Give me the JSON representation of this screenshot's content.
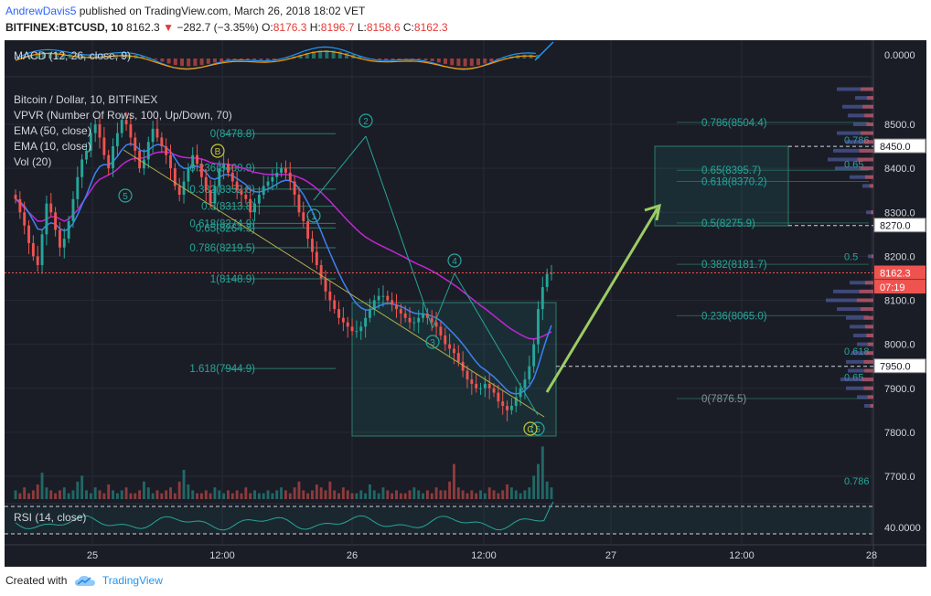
{
  "header": {
    "author": "AndrewDavis5",
    "published": "published on TradingView.com, March 26, 2018 18:02 VET",
    "symbol": "BITFINEX:BTCUSD, 10",
    "last": "8162.3",
    "change_arrow": "▼",
    "change": "−282.7 (−3.35%)",
    "o_label": "O:",
    "o": "8176.3",
    "h_label": "H:",
    "h": "8196.7",
    "l_label": "L:",
    "l": "8158.6",
    "c_label": "C:",
    "c": "8162.3"
  },
  "legend": {
    "macd": "MACD (12, 26, close, 9)",
    "title": "Bitcoin / Dollar, 10, BITFINEX",
    "vpvr": "VPVR (Number Of Rows, 100, Up/Down, 70)",
    "ema50": "EMA (50, close)",
    "ema10": "EMA (10, close)",
    "vol": "Vol (20)",
    "rsi": "RSI (14, close)"
  },
  "colors": {
    "background": "#1a1d26",
    "up": "#26a69a",
    "down": "#ef5350",
    "ema50": "#c026d3",
    "ema10": "#3b82f6",
    "fib": "#2e7d6a",
    "arrow": "#9ccc65",
    "current_price": "#ef5350"
  },
  "footer": {
    "created_with": "Created with",
    "brand": "TradingView",
    "logo_icon": "tradingview-cloud-icon"
  },
  "chart_data": {
    "type": "candlestick",
    "title": "Bitcoin / Dollar, 10, BITFINEX",
    "price_axis": {
      "ticks": [
        "8500.0",
        "8400.0",
        "8300.0",
        "8200.0",
        "8100.0",
        "8000.0",
        "7900.0",
        "7800.0",
        "7700.0"
      ],
      "ylim": [
        7650,
        8600
      ]
    },
    "time_axis": {
      "ticks": [
        "25",
        "12:00",
        "26",
        "12:00",
        "27",
        "12:00",
        "28"
      ]
    },
    "macd_axis": "0.0000",
    "rsi_axis": "40.0000",
    "price_tags": [
      {
        "label": "8450.0",
        "value": 8450,
        "style": "white"
      },
      {
        "label": "8270.0",
        "value": 8270,
        "style": "white"
      },
      {
        "label": "8162.3",
        "value": 8162.3,
        "style": "red"
      },
      {
        "label": "07:19",
        "value": 8130,
        "style": "red"
      },
      {
        "label": "7950.0",
        "value": 7950,
        "style": "white"
      }
    ],
    "close_series": [
      8330,
      8300,
      8270,
      8230,
      8200,
      8180,
      8250,
      8320,
      8300,
      8260,
      8220,
      8240,
      8280,
      8330,
      8380,
      8420,
      8440,
      8480,
      8500,
      8470,
      8430,
      8400,
      8450,
      8480,
      8510,
      8500,
      8470,
      8440,
      8400,
      8420,
      8460,
      8490,
      8470,
      8450,
      8430,
      8400,
      8360,
      8340,
      8370,
      8400,
      8430,
      8410,
      8380,
      8350,
      8320,
      8360,
      8400,
      8410,
      8390,
      8370,
      8350,
      8340,
      8330,
      8300,
      8320,
      8340,
      8360,
      8370,
      8380,
      8390,
      8400,
      8390,
      8370,
      8340,
      8300,
      8280,
      8240,
      8210,
      8180,
      8150,
      8120,
      8100,
      8080,
      8060,
      8050,
      8040,
      8030,
      8030,
      8040,
      8060,
      8080,
      8100,
      8110,
      8110,
      8100,
      8090,
      8080,
      8070,
      8060,
      8050,
      8050,
      8060,
      8070,
      8060,
      8050,
      8040,
      8020,
      8000,
      7990,
      7980,
      7960,
      7940,
      7920,
      7910,
      7900,
      7900,
      7910,
      7900,
      7890,
      7870,
      7860,
      7850,
      7860,
      7880,
      7900,
      7920,
      7950,
      8000,
      8080,
      8130,
      8160,
      8162.3
    ],
    "ema50_series": [
      8330,
      8320,
      8310,
      8300,
      8290,
      8280,
      8280,
      8285,
      8290,
      8290,
      8285,
      8280,
      8285,
      8295,
      8305,
      8320,
      8335,
      8350,
      8365,
      8375,
      8380,
      8385,
      8390,
      8398,
      8408,
      8415,
      8420,
      8423,
      8423,
      8424,
      8428,
      8433,
      8436,
      8437,
      8437,
      8435,
      8431,
      8427,
      8425,
      8424,
      8424,
      8423,
      8421,
      8418,
      8413,
      8411,
      8410,
      8410,
      8409,
      8407,
      8404,
      8401,
      8398,
      8394,
      8391,
      8389,
      8387,
      8386,
      8386,
      8386,
      8386,
      8386,
      8385,
      8383,
      8379,
      8375,
      8369,
      8362,
      8354,
      8345,
      8335,
      8325,
      8314,
      8303,
      8292,
      8281,
      8271,
      8261,
      8252,
      8244,
      8238,
      8232,
      8227,
      8222,
      8217,
      8212,
      8207,
      8202,
      8197,
      8191,
      8186,
      8181,
      8177,
      8172,
      8167,
      8161,
      8155,
      8148,
      8142,
      8135,
      8128,
      8120,
      8112,
      8104,
      8096,
      8088,
      8081,
      8073,
      8065,
      8057,
      8049,
      8041,
      8034,
      8028,
      8022,
      8017,
      8013,
      8012,
      8014,
      8018,
      8023,
      8028
    ],
    "ema10_series": [
      8330,
      8324,
      8314,
      8299,
      8281,
      8262,
      8260,
      8271,
      8276,
      8273,
      8263,
      8258,
      8262,
      8275,
      8294,
      8317,
      8339,
      8365,
      8389,
      8404,
      8409,
      8407,
      8415,
      8427,
      8442,
      8453,
      8456,
      8452,
      8442,
      8438,
      8441,
      8450,
      8454,
      8453,
      8447,
      8438,
      8423,
      8407,
      8400,
      8400,
      8405,
      8405,
      8400,
      8391,
      8378,
      8375,
      8380,
      8385,
      8386,
      8383,
      8377,
      8370,
      8363,
      8351,
      8347,
      8346,
      8349,
      8353,
      8358,
      8364,
      8370,
      8373,
      8372,
      8366,
      8354,
      8340,
      8322,
      8302,
      8280,
      8256,
      8231,
      8207,
      8184,
      8162,
      8141,
      8123,
      8106,
      8092,
      8083,
      8078,
      8078,
      8082,
      8087,
      8091,
      8093,
      8092,
      8089,
      8086,
      8081,
      8075,
      8071,
      8069,
      8069,
      8067,
      8064,
      8060,
      8053,
      8043,
      8033,
      8023,
      8012,
      8000,
      7987,
      7973,
      7960,
      7949,
      7942,
      7934,
      7926,
      7916,
      7906,
      7895,
      7889,
      7887,
      7889,
      7895,
      7905,
      7922,
      7951,
      7984,
      8016,
      8043
    ],
    "volume_series": [
      3,
      2,
      4,
      2,
      3,
      5,
      9,
      4,
      3,
      2,
      3,
      4,
      2,
      3,
      6,
      8,
      3,
      2,
      4,
      3,
      2,
      5,
      3,
      2,
      3,
      4,
      2,
      2,
      3,
      6,
      4,
      2,
      3,
      2,
      3,
      4,
      2,
      6,
      10,
      5,
      3,
      2,
      2,
      3,
      2,
      4,
      3,
      2,
      3,
      2,
      3,
      2,
      4,
      2,
      3,
      2,
      2,
      3,
      2,
      3,
      4,
      3,
      2,
      4,
      6,
      3,
      2,
      3,
      5,
      4,
      3,
      6,
      3,
      2,
      4,
      3,
      2,
      2,
      3,
      2,
      5,
      3,
      2,
      4,
      3,
      2,
      3,
      2,
      2,
      3,
      4,
      3,
      2,
      3,
      2,
      4,
      3,
      3,
      6,
      12,
      4,
      3,
      2,
      3,
      2,
      3,
      2,
      4,
      3,
      2,
      3,
      5,
      4,
      3,
      2,
      3,
      4,
      8,
      12,
      18,
      6,
      4
    ]
  },
  "annotations": {
    "fib_retracement_right": [
      {
        "label": "0.786(8504.4)",
        "value": 8504.4
      },
      {
        "label": "0.65(8395.7)",
        "value": 8395.7
      },
      {
        "label": "0.618(8370.2)",
        "value": 8370.2
      },
      {
        "label": "0.5(8275.9)",
        "value": 8275.9
      },
      {
        "label": "0.382(8181.7)",
        "value": 8181.7
      },
      {
        "label": "0.236(8065.0)",
        "value": 8065.0
      },
      {
        "label": "0(7876.5)",
        "value": 7876.5
      }
    ],
    "fib_retracement_left": [
      {
        "label": "0(8478.8)",
        "value": 8478.8
      },
      {
        "label": "0.236(8400.9)",
        "value": 8400.9
      },
      {
        "label": "0.382(8352.8)",
        "value": 8352.8
      },
      {
        "label": "0.5(8313.8)",
        "value": 8313.8
      },
      {
        "label": "0.618(8274.9)",
        "value": 8274.9
      },
      {
        "label": "0.65(8264.3)",
        "value": 8264.3
      },
      {
        "label": "0.786(8219.5)",
        "value": 8219.5
      },
      {
        "label": "1(8148.9)",
        "value": 8148.9
      },
      {
        "label": "1.618(7944.9)",
        "value": 7944.9
      }
    ],
    "fib_partial_labels": [
      "0.786",
      "0.65",
      "0.5",
      "0.618",
      "0.65",
      "0.786"
    ],
    "wave_labels": [
      "5",
      "B",
      "1",
      "2",
      "3",
      "4",
      "5",
      "C"
    ]
  }
}
